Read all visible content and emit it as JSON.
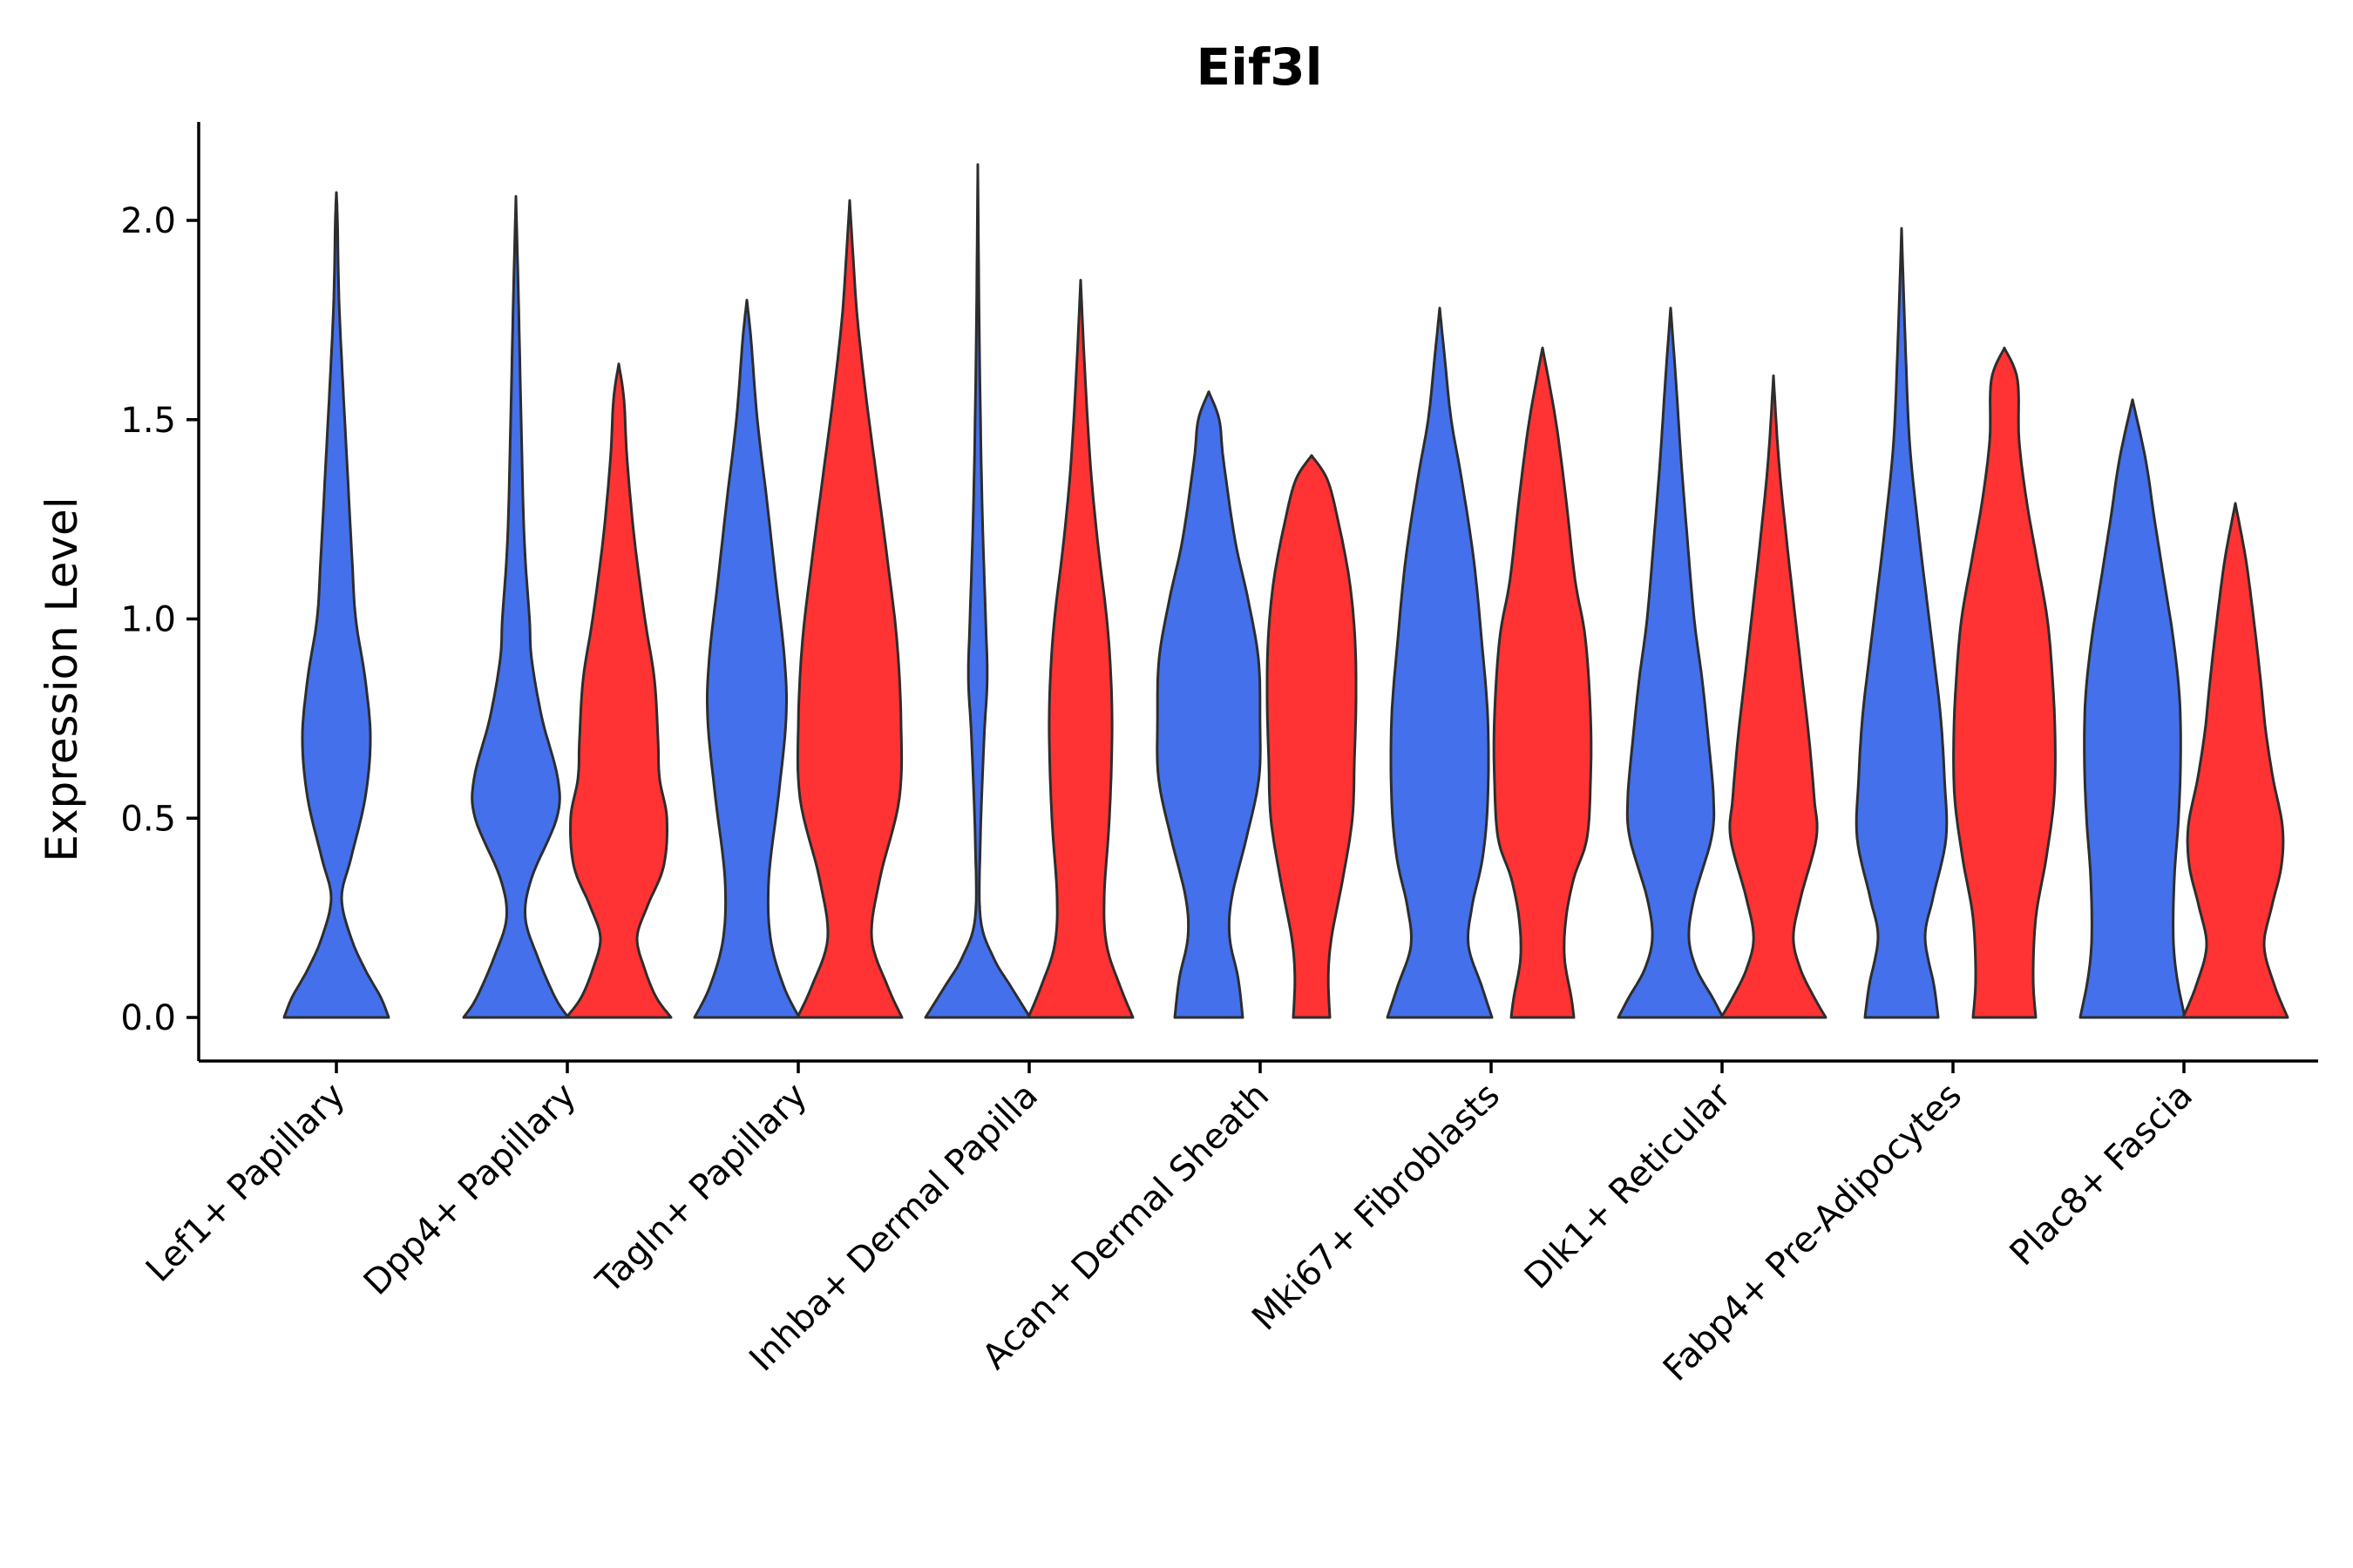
{
  "chart_data": {
    "type": "violin",
    "title": "Eif3l",
    "xlabel": "",
    "ylabel": "Expression Level",
    "ylim": [
      -0.1,
      2.25
    ],
    "yticks": [
      0.0,
      0.5,
      1.0,
      1.5,
      2.0
    ],
    "ytick_labels": [
      "0.0",
      "0.5",
      "1.0",
      "1.5",
      "2.0"
    ],
    "grid": false,
    "legend": "none",
    "colors": {
      "group_a": "#4470EB",
      "group_b": "#FF3333",
      "outline": "#2D2D2D"
    },
    "categories": [
      "Lef1+ Papillary",
      "Dpp4+ Papillary",
      "Tagln+ Papillary",
      "Inhba+ Dermal Papilla",
      "Acan+ Dermal Sheath",
      "Mki67+ Fibroblasts",
      "Dlk1+ Reticular",
      "Fabp4+ Pre-Adipocytes",
      "Plac8+ Fascia"
    ],
    "violins": [
      {
        "category": "Lef1+ Papillary",
        "group": "a",
        "max": 2.07,
        "profile": [
          [
            0,
            1.0
          ],
          [
            0.05,
            0.85
          ],
          [
            0.12,
            0.55
          ],
          [
            0.2,
            0.28
          ],
          [
            0.3,
            0.1
          ],
          [
            0.4,
            0.28
          ],
          [
            0.55,
            0.55
          ],
          [
            0.7,
            0.65
          ],
          [
            0.85,
            0.55
          ],
          [
            1.0,
            0.37
          ],
          [
            1.15,
            0.3
          ],
          [
            1.4,
            0.2
          ],
          [
            1.6,
            0.12
          ],
          [
            1.8,
            0.05
          ],
          [
            2.0,
            0.02
          ],
          [
            2.07,
            0
          ]
        ]
      },
      {
        "category": "Dpp4+ Papillary",
        "group": "a",
        "max": 2.06,
        "profile": [
          [
            0,
            1.0
          ],
          [
            0.05,
            0.75
          ],
          [
            0.15,
            0.42
          ],
          [
            0.25,
            0.18
          ],
          [
            0.35,
            0.3
          ],
          [
            0.5,
            0.78
          ],
          [
            0.6,
            0.8
          ],
          [
            0.75,
            0.5
          ],
          [
            0.9,
            0.3
          ],
          [
            1.0,
            0.26
          ],
          [
            1.2,
            0.16
          ],
          [
            1.5,
            0.1
          ],
          [
            1.8,
            0.05
          ],
          [
            2.06,
            0
          ]
        ]
      },
      {
        "category": "Dpp4+ Papillary",
        "group": "b",
        "max": 1.64,
        "profile": [
          [
            0,
            1.0
          ],
          [
            0.05,
            0.72
          ],
          [
            0.12,
            0.5
          ],
          [
            0.2,
            0.35
          ],
          [
            0.28,
            0.55
          ],
          [
            0.38,
            0.86
          ],
          [
            0.5,
            0.92
          ],
          [
            0.6,
            0.78
          ],
          [
            0.7,
            0.75
          ],
          [
            0.85,
            0.68
          ],
          [
            1.0,
            0.5
          ],
          [
            1.2,
            0.3
          ],
          [
            1.4,
            0.16
          ],
          [
            1.55,
            0.1
          ],
          [
            1.64,
            0
          ]
        ]
      },
      {
        "category": "Tagln+ Papillary",
        "group": "a",
        "max": 1.8,
        "profile": [
          [
            0,
            1.0
          ],
          [
            0.08,
            0.7
          ],
          [
            0.2,
            0.45
          ],
          [
            0.35,
            0.42
          ],
          [
            0.55,
            0.6
          ],
          [
            0.75,
            0.75
          ],
          [
            0.9,
            0.72
          ],
          [
            1.1,
            0.55
          ],
          [
            1.3,
            0.38
          ],
          [
            1.5,
            0.2
          ],
          [
            1.7,
            0.08
          ],
          [
            1.8,
            0
          ]
        ]
      },
      {
        "category": "Tagln+ Papillary",
        "group": "b",
        "max": 2.05,
        "profile": [
          [
            0,
            1.0
          ],
          [
            0.08,
            0.72
          ],
          [
            0.2,
            0.42
          ],
          [
            0.35,
            0.58
          ],
          [
            0.55,
            0.95
          ],
          [
            0.75,
            0.98
          ],
          [
            0.95,
            0.9
          ],
          [
            1.15,
            0.72
          ],
          [
            1.35,
            0.52
          ],
          [
            1.55,
            0.32
          ],
          [
            1.75,
            0.15
          ],
          [
            1.9,
            0.07
          ],
          [
            2.05,
            0
          ]
        ]
      },
      {
        "category": "Inhba+ Dermal Papilla",
        "group": "a",
        "max": 2.14,
        "profile": [
          [
            0,
            1.0
          ],
          [
            0.08,
            0.62
          ],
          [
            0.15,
            0.3
          ],
          [
            0.25,
            0.05
          ],
          [
            0.45,
            0.05
          ],
          [
            0.7,
            0.12
          ],
          [
            0.85,
            0.18
          ],
          [
            1.0,
            0.15
          ],
          [
            1.3,
            0.08
          ],
          [
            1.7,
            0.03
          ],
          [
            2.14,
            0
          ]
        ]
      },
      {
        "category": "Inhba+ Dermal Papilla",
        "group": "b",
        "max": 1.85,
        "profile": [
          [
            0,
            1.0
          ],
          [
            0.08,
            0.75
          ],
          [
            0.18,
            0.5
          ],
          [
            0.3,
            0.45
          ],
          [
            0.5,
            0.55
          ],
          [
            0.7,
            0.6
          ],
          [
            0.85,
            0.58
          ],
          [
            1.0,
            0.5
          ],
          [
            1.2,
            0.32
          ],
          [
            1.4,
            0.18
          ],
          [
            1.65,
            0.07
          ],
          [
            1.85,
            0
          ]
        ]
      },
      {
        "category": "Acan+ Dermal Sheath",
        "group": "a",
        "max": 1.57,
        "profile": [
          [
            0,
            0.65
          ],
          [
            0.1,
            0.56
          ],
          [
            0.2,
            0.4
          ],
          [
            0.3,
            0.44
          ],
          [
            0.45,
            0.72
          ],
          [
            0.6,
            0.96
          ],
          [
            0.75,
            0.98
          ],
          [
            0.9,
            0.95
          ],
          [
            1.05,
            0.75
          ],
          [
            1.2,
            0.5
          ],
          [
            1.4,
            0.28
          ],
          [
            1.5,
            0.2
          ],
          [
            1.57,
            0
          ]
        ]
      },
      {
        "category": "Acan+ Dermal Sheath",
        "group": "b",
        "max": 1.41,
        "profile": [
          [
            0,
            0.35
          ],
          [
            0.1,
            0.32
          ],
          [
            0.2,
            0.38
          ],
          [
            0.35,
            0.6
          ],
          [
            0.5,
            0.78
          ],
          [
            0.65,
            0.82
          ],
          [
            0.8,
            0.85
          ],
          [
            0.95,
            0.83
          ],
          [
            1.1,
            0.72
          ],
          [
            1.25,
            0.5
          ],
          [
            1.35,
            0.3
          ],
          [
            1.41,
            0
          ]
        ]
      },
      {
        "category": "Mki67+ Fibroblasts",
        "group": "a",
        "max": 1.78,
        "profile": [
          [
            0,
            1.0
          ],
          [
            0.08,
            0.8
          ],
          [
            0.18,
            0.55
          ],
          [
            0.28,
            0.62
          ],
          [
            0.4,
            0.82
          ],
          [
            0.55,
            0.92
          ],
          [
            0.75,
            0.92
          ],
          [
            0.95,
            0.8
          ],
          [
            1.15,
            0.65
          ],
          [
            1.35,
            0.42
          ],
          [
            1.5,
            0.22
          ],
          [
            1.65,
            0.1
          ],
          [
            1.78,
            0
          ]
        ]
      },
      {
        "category": "Mki67+ Fibroblasts",
        "group": "b",
        "max": 1.68,
        "profile": [
          [
            0,
            0.6
          ],
          [
            0.05,
            0.55
          ],
          [
            0.15,
            0.42
          ],
          [
            0.25,
            0.45
          ],
          [
            0.35,
            0.6
          ],
          [
            0.45,
            0.85
          ],
          [
            0.6,
            0.92
          ],
          [
            0.75,
            0.92
          ],
          [
            0.95,
            0.82
          ],
          [
            1.1,
            0.62
          ],
          [
            1.3,
            0.45
          ],
          [
            1.5,
            0.25
          ],
          [
            1.68,
            0
          ]
        ]
      },
      {
        "category": "Dlk1+ Reticular",
        "group": "a",
        "max": 1.78,
        "profile": [
          [
            0,
            1.0
          ],
          [
            0.05,
            0.8
          ],
          [
            0.12,
            0.5
          ],
          [
            0.2,
            0.35
          ],
          [
            0.3,
            0.45
          ],
          [
            0.45,
            0.78
          ],
          [
            0.55,
            0.82
          ],
          [
            0.7,
            0.72
          ],
          [
            0.85,
            0.6
          ],
          [
            1.0,
            0.45
          ],
          [
            1.2,
            0.32
          ],
          [
            1.4,
            0.2
          ],
          [
            1.6,
            0.1
          ],
          [
            1.78,
            0
          ]
        ]
      },
      {
        "category": "Dlk1+ Reticular",
        "group": "b",
        "max": 1.61,
        "profile": [
          [
            0,
            1.0
          ],
          [
            0.05,
            0.78
          ],
          [
            0.12,
            0.52
          ],
          [
            0.2,
            0.38
          ],
          [
            0.3,
            0.52
          ],
          [
            0.45,
            0.82
          ],
          [
            0.55,
            0.78
          ],
          [
            0.7,
            0.68
          ],
          [
            0.85,
            0.55
          ],
          [
            1.0,
            0.42
          ],
          [
            1.2,
            0.25
          ],
          [
            1.4,
            0.1
          ],
          [
            1.61,
            0
          ]
        ]
      },
      {
        "category": "Fabp4+ Pre-Adipocytes",
        "group": "a",
        "max": 1.98,
        "profile": [
          [
            0,
            0.7
          ],
          [
            0.08,
            0.62
          ],
          [
            0.2,
            0.45
          ],
          [
            0.3,
            0.6
          ],
          [
            0.45,
            0.85
          ],
          [
            0.6,
            0.82
          ],
          [
            0.75,
            0.75
          ],
          [
            0.9,
            0.62
          ],
          [
            1.05,
            0.48
          ],
          [
            1.25,
            0.3
          ],
          [
            1.45,
            0.15
          ],
          [
            1.7,
            0.07
          ],
          [
            1.98,
            0
          ]
        ]
      },
      {
        "category": "Fabp4+ Pre-Adipocytes",
        "group": "b",
        "max": 1.68,
        "profile": [
          [
            0,
            0.6
          ],
          [
            0.1,
            0.55
          ],
          [
            0.25,
            0.6
          ],
          [
            0.4,
            0.8
          ],
          [
            0.55,
            0.95
          ],
          [
            0.7,
            0.97
          ],
          [
            0.85,
            0.92
          ],
          [
            1.0,
            0.82
          ],
          [
            1.15,
            0.62
          ],
          [
            1.3,
            0.42
          ],
          [
            1.45,
            0.28
          ],
          [
            1.6,
            0.25
          ],
          [
            1.68,
            0
          ]
        ]
      },
      {
        "category": "Plac8+ Fascia",
        "group": "a",
        "max": 1.55,
        "profile": [
          [
            0,
            1.0
          ],
          [
            0.1,
            0.85
          ],
          [
            0.2,
            0.78
          ],
          [
            0.35,
            0.8
          ],
          [
            0.5,
            0.88
          ],
          [
            0.65,
            0.92
          ],
          [
            0.8,
            0.9
          ],
          [
            0.95,
            0.78
          ],
          [
            1.1,
            0.6
          ],
          [
            1.25,
            0.42
          ],
          [
            1.4,
            0.25
          ],
          [
            1.55,
            0
          ]
        ]
      },
      {
        "category": "Plac8+ Fascia",
        "group": "b",
        "max": 1.29,
        "profile": [
          [
            0,
            1.0
          ],
          [
            0.08,
            0.75
          ],
          [
            0.18,
            0.55
          ],
          [
            0.28,
            0.7
          ],
          [
            0.38,
            0.88
          ],
          [
            0.48,
            0.9
          ],
          [
            0.6,
            0.72
          ],
          [
            0.72,
            0.58
          ],
          [
            0.85,
            0.48
          ],
          [
            1.0,
            0.35
          ],
          [
            1.15,
            0.2
          ],
          [
            1.29,
            0
          ]
        ]
      }
    ]
  }
}
